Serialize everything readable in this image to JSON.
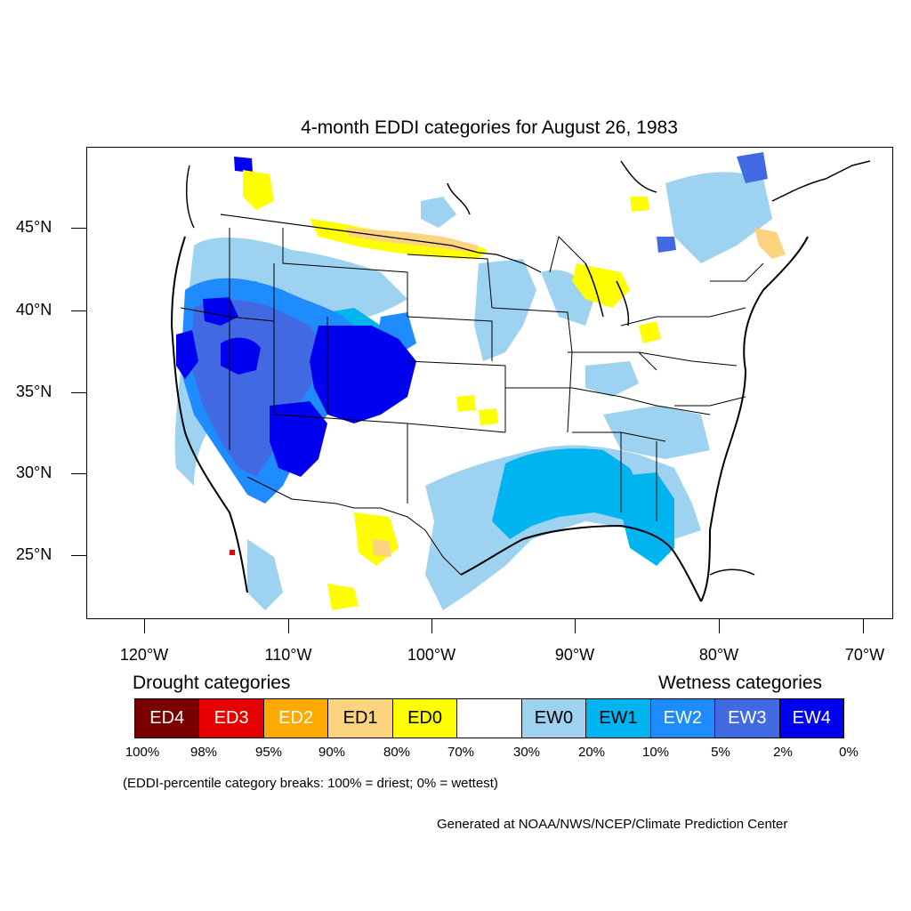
{
  "title": "4-month EDDI categories for August 26, 1983",
  "lat_labels": [
    "45°N",
    "40°N",
    "35°N",
    "30°N",
    "25°N"
  ],
  "lon_labels": [
    "120°W",
    "110°W",
    "100°W",
    "90°W",
    "80°W",
    "70°W"
  ],
  "drought_heading": "Drought categories",
  "wetness_heading": "Wetness categories",
  "legend": [
    {
      "label": "ED4",
      "color": "#7a0000",
      "text_color": "#ffffff"
    },
    {
      "label": "ED3",
      "color": "#e60000",
      "text_color": "#ffffff"
    },
    {
      "label": "ED2",
      "color": "#ffaa00",
      "text_color": "#ffffff"
    },
    {
      "label": "ED1",
      "color": "#fcd37f",
      "text_color": "#000000"
    },
    {
      "label": "ED0",
      "color": "#ffff00",
      "text_color": "#000000"
    },
    {
      "label": "",
      "color": "#ffffff",
      "text_color": "#000000"
    },
    {
      "label": "EW0",
      "color": "#9dd2f0",
      "text_color": "#000000"
    },
    {
      "label": "EW1",
      "color": "#00b4f0",
      "text_color": "#000000"
    },
    {
      "label": "EW2",
      "color": "#1e8cff",
      "text_color": "#ffffff"
    },
    {
      "label": "EW3",
      "color": "#4169e1",
      "text_color": "#ffffff"
    },
    {
      "label": "EW4",
      "color": "#0000f0",
      "text_color": "#ffffff"
    }
  ],
  "percent_breaks": [
    "100%",
    "98%",
    "95%",
    "90%",
    "80%",
    "70%",
    "30%",
    "20%",
    "10%",
    "5%",
    "2%",
    "0%"
  ],
  "note": "(EDDI-percentile category breaks: 100% = driest; 0% = wettest)",
  "credit": "Generated at NOAA/NWS/NCEP/Climate Prediction Center"
}
